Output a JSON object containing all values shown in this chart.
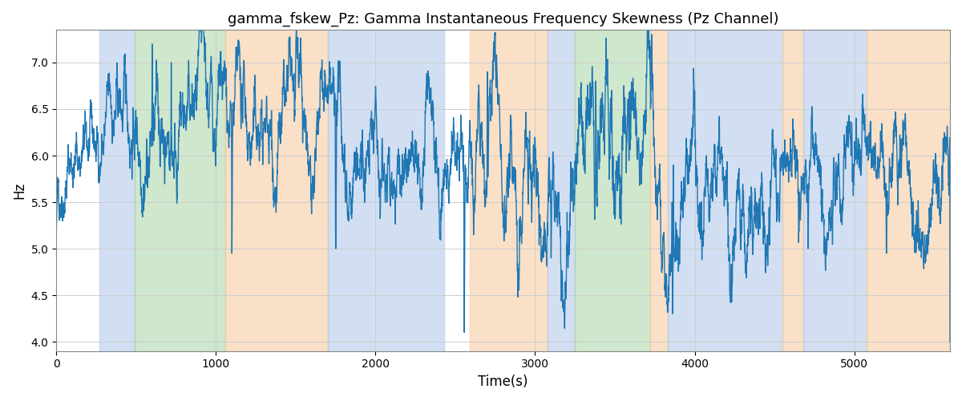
{
  "title": "gamma_fskew_Pz: Gamma Instantaneous Frequency Skewness (Pz Channel)",
  "xlabel": "Time(s)",
  "ylabel": "Hz",
  "xlim": [
    0,
    5600
  ],
  "ylim": [
    3.9,
    7.35
  ],
  "yticks": [
    4.0,
    4.5,
    5.0,
    5.5,
    6.0,
    6.5,
    7.0
  ],
  "xticks": [
    0,
    1000,
    2000,
    3000,
    4000,
    5000
  ],
  "line_color": "#1f77b4",
  "line_width": 1.0,
  "background_color": "#ffffff",
  "grid_color": "#cccccc",
  "shade_regions": [
    {
      "start": 270,
      "end": 490,
      "color": "#aec6e8",
      "alpha": 0.55
    },
    {
      "start": 490,
      "end": 1060,
      "color": "#a8d5a2",
      "alpha": 0.55
    },
    {
      "start": 1060,
      "end": 1700,
      "color": "#f5c89a",
      "alpha": 0.55
    },
    {
      "start": 1700,
      "end": 2430,
      "color": "#aec6e8",
      "alpha": 0.55
    },
    {
      "start": 2430,
      "end": 2590,
      "color": "#ffffff",
      "alpha": 0.0
    },
    {
      "start": 2590,
      "end": 3080,
      "color": "#f5c89a",
      "alpha": 0.55
    },
    {
      "start": 3080,
      "end": 3250,
      "color": "#aec6e8",
      "alpha": 0.55
    },
    {
      "start": 3250,
      "end": 3720,
      "color": "#a8d5a2",
      "alpha": 0.55
    },
    {
      "start": 3720,
      "end": 3830,
      "color": "#f5c89a",
      "alpha": 0.55
    },
    {
      "start": 3830,
      "end": 4550,
      "color": "#aec6e8",
      "alpha": 0.55
    },
    {
      "start": 4550,
      "end": 4680,
      "color": "#f5c89a",
      "alpha": 0.55
    },
    {
      "start": 4680,
      "end": 5080,
      "color": "#aec6e8",
      "alpha": 0.55
    },
    {
      "start": 5080,
      "end": 5600,
      "color": "#f5c89a",
      "alpha": 0.55
    }
  ],
  "seed": 42,
  "n_points": 5600,
  "time_start": 0,
  "time_end": 5600
}
